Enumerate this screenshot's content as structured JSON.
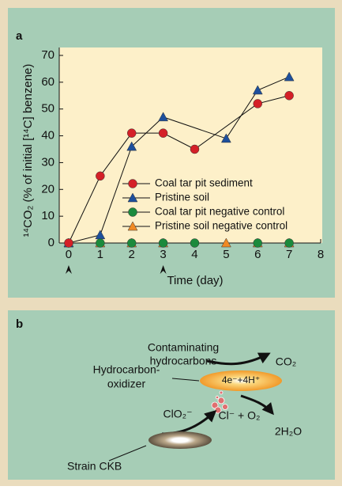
{
  "chart_data": {
    "type": "line",
    "panel": "a",
    "xlabel": "Time (day)",
    "ylabel": "¹⁴CO₂ (% of initial [¹⁴C] benzene)",
    "xlim": [
      -0.3,
      8
    ],
    "xticks": [
      0,
      1,
      2,
      3,
      4,
      5,
      6,
      7,
      8
    ],
    "ylim": [
      0,
      70
    ],
    "yticks": [
      0,
      10,
      20,
      30,
      40,
      50,
      60,
      70
    ],
    "arrows_x": [
      0,
      3
    ],
    "series": [
      {
        "name": "Coal tar pit sediment",
        "color": "#d42027",
        "marker": "circle",
        "x": [
          0,
          1,
          2,
          3,
          4,
          6,
          7
        ],
        "values": [
          0,
          25,
          41,
          41,
          35,
          52,
          55
        ]
      },
      {
        "name": "Pristine soil",
        "color": "#1d4f9c",
        "marker": "triangle",
        "x": [
          0,
          1,
          2,
          3,
          5,
          6,
          7
        ],
        "values": [
          0,
          3,
          36,
          47,
          39,
          57,
          62
        ]
      },
      {
        "name": "Coal tar pit negative control",
        "color": "#1b8a3c",
        "marker": "circle",
        "x": [
          0,
          1,
          2,
          3,
          4,
          6,
          7
        ],
        "values": [
          0,
          0,
          0,
          0,
          0,
          0,
          0
        ]
      },
      {
        "name": "Pristine soil negative control",
        "color": "#f08a24",
        "marker": "triangle",
        "x": [
          0,
          1,
          2,
          3,
          5,
          6,
          7
        ],
        "values": [
          0,
          0,
          0,
          0,
          0,
          0,
          0
        ]
      }
    ]
  },
  "diagram": {
    "panel": "b",
    "contaminants": [
      "Contaminating",
      "hydrocarbons"
    ],
    "co2": "CO₂",
    "oxidizer": [
      "Hydrocarbon-",
      "oxidizer"
    ],
    "electrons": "4e⁻+4H⁺",
    "water": "2H₂O",
    "chlorite": "ClO₂⁻",
    "products": "Cl⁻ + O₂",
    "strain": "Strain CKB"
  }
}
